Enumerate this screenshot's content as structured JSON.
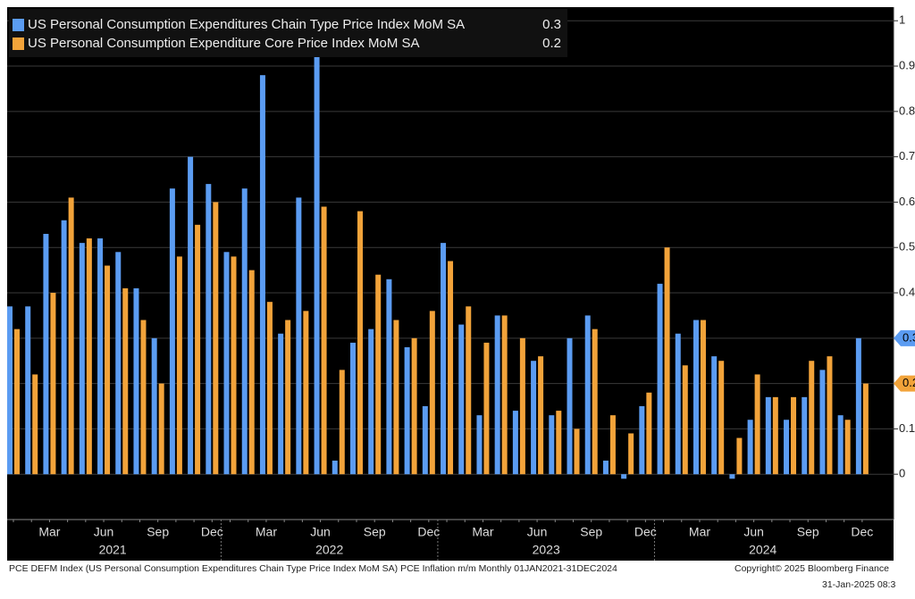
{
  "chart_data": {
    "type": "bar",
    "categories": [
      null,
      null,
      "Mar",
      null,
      null,
      "Jun",
      null,
      null,
      "Sep",
      null,
      null,
      "Dec",
      null,
      null,
      "Mar",
      null,
      null,
      "Jun",
      null,
      null,
      "Sep",
      null,
      null,
      "Dec",
      null,
      null,
      "Mar",
      null,
      null,
      "Jun",
      null,
      null,
      "Sep",
      null,
      null,
      "Dec",
      null,
      null,
      "Mar",
      null,
      null,
      "Jun",
      null,
      null,
      "Sep",
      null,
      null,
      "Dec"
    ],
    "years": [
      "2021",
      "2022",
      "2023",
      "2024"
    ],
    "series": [
      {
        "name": "US Personal Consumption Expenditures Chain Type Price Index MoM SA",
        "color": "#5b9cf2",
        "values": [
          0.37,
          0.37,
          0.53,
          0.56,
          0.51,
          0.52,
          0.49,
          0.41,
          0.3,
          0.63,
          0.7,
          0.64,
          0.49,
          0.63,
          0.88,
          0.31,
          0.61,
          0.94,
          0.03,
          0.29,
          0.32,
          0.43,
          0.28,
          0.15,
          0.51,
          0.33,
          0.13,
          0.35,
          0.14,
          0.25,
          0.13,
          0.3,
          0.35,
          0.03,
          -0.01,
          0.15,
          0.42,
          0.31,
          0.34,
          0.26,
          -0.01,
          0.12,
          0.17,
          0.12,
          0.17,
          0.23,
          0.13,
          0.3
        ]
      },
      {
        "name": "US Personal Consumption Expenditure Core Price Index MoM SA",
        "color": "#f2a33a",
        "values": [
          0.32,
          0.22,
          0.4,
          0.61,
          0.52,
          0.46,
          0.41,
          0.34,
          0.2,
          0.48,
          0.55,
          0.6,
          0.48,
          0.45,
          0.38,
          0.34,
          0.36,
          0.59,
          0.23,
          0.58,
          0.44,
          0.34,
          0.3,
          0.36,
          0.47,
          0.37,
          0.29,
          0.35,
          0.3,
          0.26,
          0.14,
          0.1,
          0.32,
          0.13,
          0.09,
          0.18,
          0.5,
          0.24,
          0.34,
          0.25,
          0.08,
          0.22,
          0.17,
          0.17,
          0.25,
          0.26,
          0.12,
          0.2
        ]
      }
    ],
    "ylim": [
      -0.1,
      1.03
    ],
    "yticks": [
      0,
      0.1,
      0.2,
      0.3,
      0.4,
      0.5,
      0.6,
      0.7,
      0.8,
      0.9,
      1
    ],
    "grid": true,
    "legend": "top-left",
    "footer": {
      "left": "PCE DEFM Index (US Personal Consumption Expenditures Chain Type Price Index MoM SA) PCE Inflation m/m  Monthly 01JAN2021-31DEC2024",
      "copyright": "Copyright© 2025 Bloomberg Finance",
      "timestamp": "31-Jan-2025 08:3"
    }
  }
}
